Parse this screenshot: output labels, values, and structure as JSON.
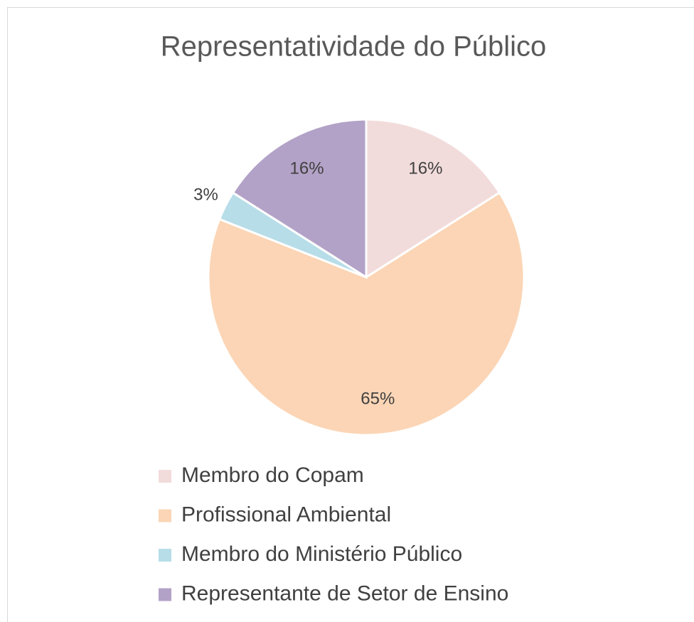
{
  "chart_data": {
    "type": "pie",
    "title": "Representatividade do Público",
    "categories": [
      "Membro do Copam",
      "Profissional Ambiental",
      "Membro do Ministério Público",
      "Representante de Setor de Ensino"
    ],
    "values": [
      16,
      65,
      3,
      16
    ],
    "value_labels": [
      "16%",
      "65%",
      "3%",
      "16%"
    ],
    "colors": [
      "#f2dcdb",
      "#fbd5b5",
      "#b7dde8",
      "#b3a2c7"
    ]
  }
}
